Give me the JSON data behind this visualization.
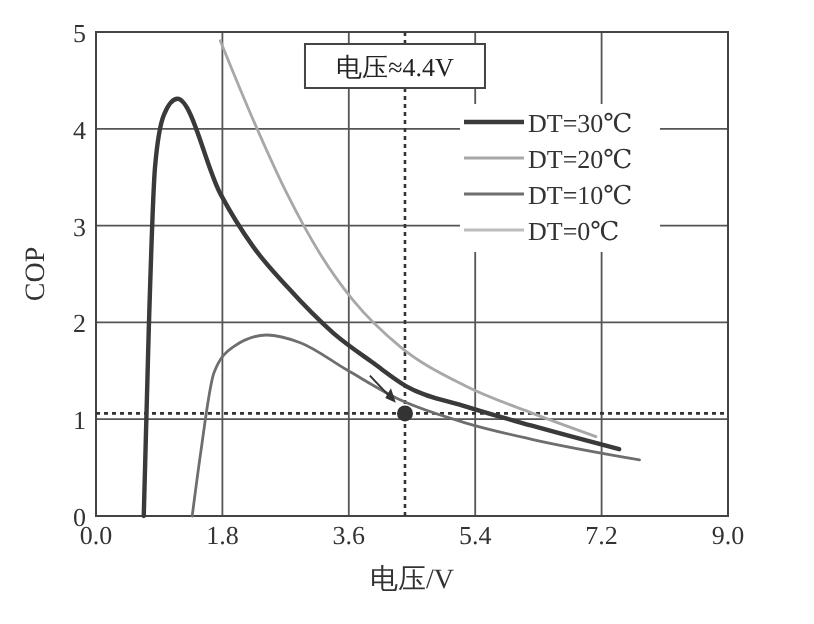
{
  "chart_data": {
    "type": "line",
    "xlabel": "电压/V",
    "ylabel": "COP",
    "xlim": [
      0,
      9
    ],
    "xticks": [
      {
        "value": 0,
        "label": "0.0"
      },
      1.8,
      3.6,
      5.4,
      7.2,
      {
        "value": 9,
        "label": "9.0"
      }
    ],
    "ylim": [
      0,
      5
    ],
    "yticks": [
      0,
      1,
      2,
      3,
      4,
      5
    ],
    "grid": true,
    "legend": "top right",
    "line_style": "solid",
    "series": [
      {
        "name": "DT=30℃",
        "color": "#3a3a3a",
        "x": [
          0.68,
          0.75,
          0.84,
          0.97,
          1.16,
          1.77,
          2.24,
          2.72,
          3.38,
          3.95,
          4.42,
          5.27,
          6.22,
          7.45
        ],
        "values": [
          0,
          1.89,
          3.6,
          4.15,
          4.31,
          3.33,
          2.78,
          2.37,
          1.89,
          1.58,
          1.34,
          1.13,
          0.93,
          0.69
        ]
      },
      {
        "name": "DT=20℃",
        "color": "#a8a8a8",
        "x": [
          1.77,
          2.24,
          2.72,
          3.19,
          3.66,
          4.33,
          5.27,
          6.22,
          7.12
        ],
        "values": [
          4.91,
          4.09,
          3.33,
          2.71,
          2.23,
          1.75,
          1.34,
          1.06,
          0.82
        ]
      },
      {
        "name": "DT=10℃",
        "color": "#6e6e6e",
        "x": [
          1.37,
          1.49,
          1.68,
          1.96,
          2.43,
          2.91,
          3.57,
          4.33,
          5.27,
          6.22,
          7.74
        ],
        "values": [
          0,
          0.65,
          1.48,
          1.75,
          1.87,
          1.79,
          1.51,
          1.2,
          0.96,
          0.79,
          0.58
        ]
      },
      {
        "name": "DT=0℃",
        "color": "#bdbdbd"
      },
      {
        "type": "scatter",
        "color": "#333333",
        "marker": "circle",
        "x": [
          4.4
        ],
        "values": [
          1.06
        ]
      }
    ],
    "ref_lines": [
      {
        "axis": "x",
        "value": 4.4,
        "label": "电压≈4.4V",
        "line_style": "dotted",
        "color": "#333333"
      },
      {
        "axis": "y",
        "value": 1.06,
        "line_style": "dotted",
        "color": "#333333"
      }
    ]
  }
}
